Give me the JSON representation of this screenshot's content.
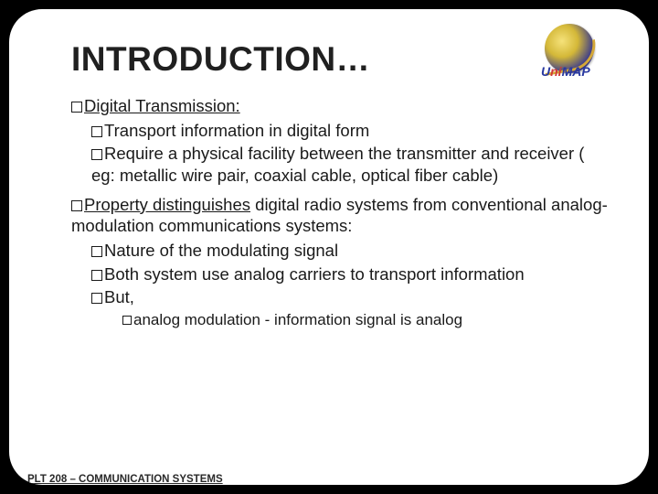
{
  "slide": {
    "title": "INTRODUCTION…",
    "logo_text_pre": "U",
    "logo_text_accent": "ni",
    "logo_text_post": "MAP",
    "l1a_lead": "Digital Transmission:",
    "l2a": "Transport information  in digital form",
    "l2b": "Require a physical facility between the transmitter and receiver ( eg: metallic wire pair, coaxial cable, optical fiber cable)",
    "l1b_lead": "Property distinguishes",
    "l1b_rest": " digital radio systems from conventional analog-modulation communications systems:",
    "l2c": "Nature of the modulating signal",
    "l2d": "Both system use analog carriers to transport information",
    "l2e": "But,",
    "l3a": "analog modulation - information signal is analog",
    "footer": "PLT 208 – COMMUNICATION SYSTEMS"
  },
  "colors": {
    "page_bg": "#000000",
    "slide_bg": "#ffffff",
    "text": "#1a1a1a",
    "logo_blue": "#2838a0",
    "logo_red": "#d03838"
  }
}
